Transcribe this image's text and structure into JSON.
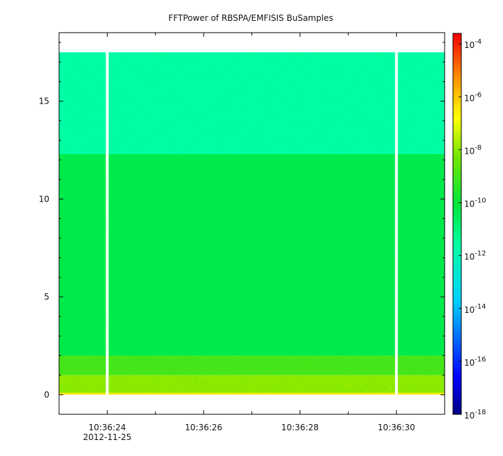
{
  "chart_data": {
    "type": "heatmap",
    "title": "FFTPower of RBSPA/EMFISIS  BuSamples",
    "xlabel": "",
    "ylabel": "",
    "x_range": [
      "10:36:23.0",
      "10:36:31.0"
    ],
    "x_ticks": [
      {
        "label": "10:36:24",
        "sublabel": "2012-11-25"
      },
      {
        "label": "10:36:26",
        "sublabel": ""
      },
      {
        "label": "10:36:28",
        "sublabel": ""
      },
      {
        "label": "10:36:30",
        "sublabel": ""
      }
    ],
    "ylim": [
      -1,
      18.5
    ],
    "y_ticks": [
      "0",
      "5",
      "10",
      "15"
    ],
    "data_gaps": [
      "10:36:24.0",
      "10:36:30.0"
    ],
    "data_ylim": [
      0,
      17.5
    ],
    "bands": [
      {
        "y_range": [
          0.0,
          0.1
        ],
        "log_power": -6.5
      },
      {
        "y_range": [
          0.1,
          1.0
        ],
        "log_power": -8.0
      },
      {
        "y_range": [
          1.0,
          2.0
        ],
        "log_power": -9.0
      },
      {
        "y_range": [
          2.0,
          12.3
        ],
        "log_power": -10.3
      },
      {
        "y_range": [
          12.3,
          17.5
        ],
        "log_power": -11.6
      }
    ],
    "colorbar": {
      "scale": "log",
      "range": [
        -18,
        -3.6
      ],
      "tick_exponents": [
        "-4",
        "-6",
        "-8",
        "-10",
        "-12",
        "-14",
        "-16",
        "-18"
      ],
      "base": "10"
    }
  }
}
